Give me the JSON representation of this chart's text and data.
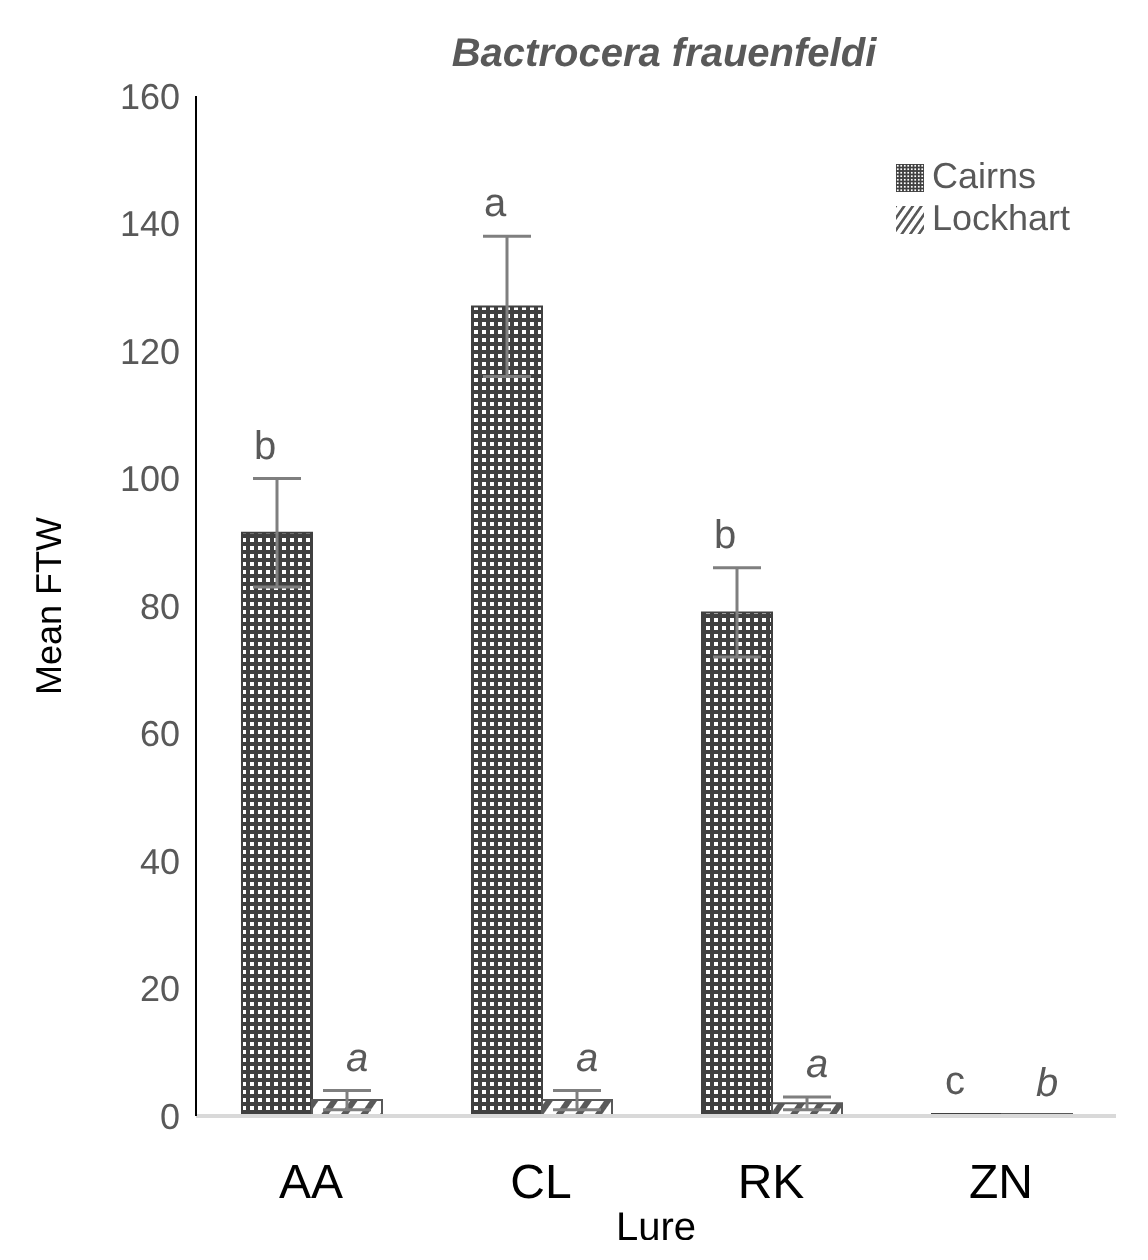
{
  "chart_data": {
    "type": "bar",
    "title": "Bactrocera frauenfeldi",
    "xlabel": "Lure",
    "ylabel": "Mean FTW",
    "categories": [
      "AA",
      "CL",
      "RK",
      "ZN"
    ],
    "series": [
      {
        "name": "Cairns",
        "color": "#404040",
        "values": [
          91.5,
          127,
          79,
          0.3
        ],
        "errors": [
          8.5,
          11,
          7,
          null
        ],
        "value_labels": [
          "b",
          "a",
          "b",
          "c"
        ]
      },
      {
        "name": "Lockhart",
        "color": "#595959",
        "values": [
          2.5,
          2.5,
          2,
          0
        ],
        "errors": [
          1.5,
          1.5,
          1,
          null
        ],
        "value_labels": [
          "a",
          "a",
          "a",
          "b"
        ]
      }
    ],
    "ylim": [
      0,
      160
    ],
    "yticks": [
      0,
      20,
      40,
      60,
      80,
      100,
      120,
      140,
      160
    ],
    "grid": false,
    "legend": "top right"
  }
}
